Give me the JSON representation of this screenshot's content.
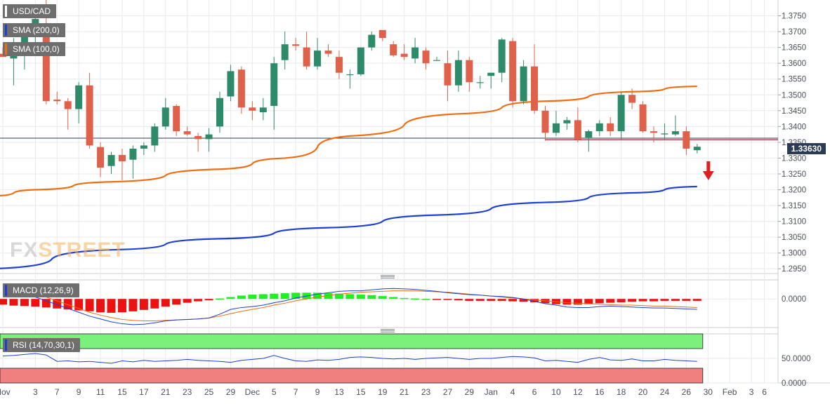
{
  "colors": {
    "bull": "#2e8b6a",
    "bear": "#e0614a",
    "sma200": "#1f3fd1",
    "sma100": "#ef6c11",
    "support": "#e0314f",
    "arrow": "#e02020",
    "macd_line": "#1f3fd1",
    "signal_line": "#ef6c11",
    "hist_pos": "#22ee22",
    "hist_neg": "#ee1111",
    "rsi_line": "#1f3fd1",
    "rsi_upper": "#7bf07b",
    "rsi_lower": "#f08080",
    "grid": "#e6e9ee",
    "price_tag_bg": "#2b3a55"
  },
  "legend": {
    "symbol": "USD/CAD",
    "sma200": "SMA (200,0)",
    "sma100": "SMA (100,0)",
    "macd": "MACD (12,26,9)",
    "rsi": "RSI (14,70,30,1)"
  },
  "price_tag": "1.33630",
  "watermark": {
    "fx": "FX",
    "street": "STREET"
  },
  "icons": {
    "pane_divider": "drag-handle-icon",
    "signal": "down-arrow-icon"
  },
  "chart_data": {
    "type": "candlestick",
    "y_ticks": [
      "1.3750",
      "1.3700",
      "1.3650",
      "1.3600",
      "1.3550",
      "1.3500",
      "1.3450",
      "1.3400",
      "1.3350",
      "1.3300",
      "1.3250",
      "1.3200",
      "1.3150",
      "1.3100",
      "1.3050",
      "1.3000",
      "1.2950"
    ],
    "ylim": [
      1.2935,
      1.38
    ],
    "x_labels": [
      "Nov",
      "3",
      "7",
      "9",
      "11",
      "15",
      "17",
      "21",
      "23",
      "25",
      "29",
      "Dec",
      "5",
      "7",
      "9",
      "13",
      "15",
      "19",
      "21",
      "23",
      "27",
      "29",
      "Jan",
      "4",
      "6",
      "10",
      "12",
      "16",
      "18",
      "20",
      "24",
      "26",
      "30",
      "Feb",
      "3",
      "6"
    ],
    "x_label_index": [
      0,
      3,
      5,
      7,
      9,
      11,
      13,
      15,
      17,
      19,
      21,
      23,
      25,
      27,
      29,
      31,
      33,
      35,
      37,
      39,
      41,
      43,
      45,
      47,
      49,
      51,
      53,
      55,
      57,
      59,
      61,
      63,
      65,
      67,
      69,
      70.2
    ],
    "candles": [
      {
        "o": 1.363,
        "h": 1.365,
        "l": 1.362,
        "c": 1.362
      },
      {
        "o": 1.3615,
        "h": 1.368,
        "l": 1.353,
        "c": 1.364
      },
      {
        "o": 1.365,
        "h": 1.372,
        "l": 1.358,
        "c": 1.371
      },
      {
        "o": 1.371,
        "h": 1.378,
        "l": 1.365,
        "c": 1.374
      },
      {
        "o": 1.372,
        "h": 1.38,
        "l": 1.347,
        "c": 1.348
      },
      {
        "o": 1.3485,
        "h": 1.351,
        "l": 1.347,
        "c": 1.348
      },
      {
        "o": 1.348,
        "h": 1.349,
        "l": 1.339,
        "c": 1.3455
      },
      {
        "o": 1.3455,
        "h": 1.354,
        "l": 1.341,
        "c": 1.353
      },
      {
        "o": 1.353,
        "h": 1.357,
        "l": 1.333,
        "c": 1.334
      },
      {
        "o": 1.3335,
        "h": 1.335,
        "l": 1.324,
        "c": 1.327
      },
      {
        "o": 1.3275,
        "h": 1.332,
        "l": 1.325,
        "c": 1.331
      },
      {
        "o": 1.331,
        "h": 1.333,
        "l": 1.323,
        "c": 1.329
      },
      {
        "o": 1.3295,
        "h": 1.334,
        "l": 1.3235,
        "c": 1.333
      },
      {
        "o": 1.333,
        "h": 1.335,
        "l": 1.331,
        "c": 1.334
      },
      {
        "o": 1.334,
        "h": 1.341,
        "l": 1.332,
        "c": 1.34
      },
      {
        "o": 1.34,
        "h": 1.349,
        "l": 1.339,
        "c": 1.346
      },
      {
        "o": 1.3465,
        "h": 1.347,
        "l": 1.337,
        "c": 1.3385
      },
      {
        "o": 1.3385,
        "h": 1.34,
        "l": 1.337,
        "c": 1.3375
      },
      {
        "o": 1.337,
        "h": 1.338,
        "l": 1.332,
        "c": 1.336
      },
      {
        "o": 1.336,
        "h": 1.3395,
        "l": 1.332,
        "c": 1.3375
      },
      {
        "o": 1.34,
        "h": 1.351,
        "l": 1.338,
        "c": 1.349
      },
      {
        "o": 1.3495,
        "h": 1.3595,
        "l": 1.348,
        "c": 1.3575
      },
      {
        "o": 1.358,
        "h": 1.359,
        "l": 1.344,
        "c": 1.346
      },
      {
        "o": 1.346,
        "h": 1.348,
        "l": 1.342,
        "c": 1.345
      },
      {
        "o": 1.3445,
        "h": 1.349,
        "l": 1.342,
        "c": 1.346
      },
      {
        "o": 1.3465,
        "h": 1.362,
        "l": 1.339,
        "c": 1.36
      },
      {
        "o": 1.361,
        "h": 1.37,
        "l": 1.358,
        "c": 1.366
      },
      {
        "o": 1.366,
        "h": 1.368,
        "l": 1.364,
        "c": 1.3655
      },
      {
        "o": 1.365,
        "h": 1.37,
        "l": 1.358,
        "c": 1.359
      },
      {
        "o": 1.359,
        "h": 1.368,
        "l": 1.358,
        "c": 1.364
      },
      {
        "o": 1.364,
        "h": 1.366,
        "l": 1.362,
        "c": 1.363
      },
      {
        "o": 1.362,
        "h": 1.364,
        "l": 1.355,
        "c": 1.357
      },
      {
        "o": 1.3565,
        "h": 1.358,
        "l": 1.352,
        "c": 1.3565
      },
      {
        "o": 1.3565,
        "h": 1.365,
        "l": 1.356,
        "c": 1.365
      },
      {
        "o": 1.365,
        "h": 1.37,
        "l": 1.364,
        "c": 1.369
      },
      {
        "o": 1.3705,
        "h": 1.3705,
        "l": 1.367,
        "c": 1.368
      },
      {
        "o": 1.366,
        "h": 1.367,
        "l": 1.362,
        "c": 1.3625
      },
      {
        "o": 1.363,
        "h": 1.366,
        "l": 1.361,
        "c": 1.362
      },
      {
        "o": 1.3615,
        "h": 1.368,
        "l": 1.36,
        "c": 1.365
      },
      {
        "o": 1.364,
        "h": 1.365,
        "l": 1.358,
        "c": 1.36
      },
      {
        "o": 1.361,
        "h": 1.362,
        "l": 1.361,
        "c": 1.361
      },
      {
        "o": 1.36,
        "h": 1.364,
        "l": 1.348,
        "c": 1.353
      },
      {
        "o": 1.353,
        "h": 1.364,
        "l": 1.351,
        "c": 1.361
      },
      {
        "o": 1.361,
        "h": 1.362,
        "l": 1.351,
        "c": 1.354
      },
      {
        "o": 1.354,
        "h": 1.356,
        "l": 1.352,
        "c": 1.354
      },
      {
        "o": 1.356,
        "h": 1.357,
        "l": 1.352,
        "c": 1.357
      },
      {
        "o": 1.357,
        "h": 1.368,
        "l": 1.354,
        "c": 1.3675
      },
      {
        "o": 1.367,
        "h": 1.368,
        "l": 1.346,
        "c": 1.348
      },
      {
        "o": 1.348,
        "h": 1.361,
        "l": 1.347,
        "c": 1.359
      },
      {
        "o": 1.359,
        "h": 1.366,
        "l": 1.344,
        "c": 1.345
      },
      {
        "o": 1.345,
        "h": 1.3465,
        "l": 1.3355,
        "c": 1.338
      },
      {
        "o": 1.338,
        "h": 1.345,
        "l": 1.337,
        "c": 1.341
      },
      {
        "o": 1.341,
        "h": 1.343,
        "l": 1.339,
        "c": 1.342
      },
      {
        "o": 1.342,
        "h": 1.346,
        "l": 1.335,
        "c": 1.336
      },
      {
        "o": 1.3365,
        "h": 1.339,
        "l": 1.332,
        "c": 1.3385
      },
      {
        "o": 1.3385,
        "h": 1.342,
        "l": 1.337,
        "c": 1.341
      },
      {
        "o": 1.341,
        "h": 1.343,
        "l": 1.337,
        "c": 1.3385
      },
      {
        "o": 1.3385,
        "h": 1.351,
        "l": 1.336,
        "c": 1.35
      },
      {
        "o": 1.35,
        "h": 1.352,
        "l": 1.3455,
        "c": 1.3475
      },
      {
        "o": 1.347,
        "h": 1.348,
        "l": 1.338,
        "c": 1.3385
      },
      {
        "o": 1.3385,
        "h": 1.34,
        "l": 1.335,
        "c": 1.338
      },
      {
        "o": 1.3375,
        "h": 1.341,
        "l": 1.336,
        "c": 1.3378
      },
      {
        "o": 1.3375,
        "h": 1.3435,
        "l": 1.337,
        "c": 1.3385
      },
      {
        "o": 1.3385,
        "h": 1.34,
        "l": 1.331,
        "c": 1.333
      },
      {
        "o": 1.3325,
        "h": 1.3345,
        "l": 1.3315,
        "c": 1.3336
      }
    ],
    "sma200_points": [
      [
        -1,
        1.295
      ],
      [
        10,
        1.301
      ],
      [
        20,
        1.3045
      ],
      [
        30,
        1.308
      ],
      [
        40,
        1.312
      ],
      [
        50,
        1.316
      ],
      [
        58,
        1.319
      ],
      [
        64,
        1.321
      ]
    ],
    "sma100_points": [
      [
        -1,
        1.318
      ],
      [
        3,
        1.32
      ],
      [
        10,
        1.3225
      ],
      [
        20,
        1.3265
      ],
      [
        26,
        1.33
      ],
      [
        32,
        1.337
      ],
      [
        42,
        1.344
      ],
      [
        50,
        1.348
      ],
      [
        58,
        1.351
      ],
      [
        64,
        1.3527
      ]
    ],
    "support_level": 1.3358,
    "support_from_index": 50,
    "current_price": 1.3363,
    "macd": {
      "ylim": [
        -0.006,
        0.004
      ],
      "tick": "0.0000",
      "histogram": [
        -0.0012,
        -0.0014,
        -0.0015,
        -0.0016,
        -0.0018,
        -0.002,
        -0.0022,
        -0.0024,
        -0.0026,
        -0.0028,
        -0.0029,
        -0.0028,
        -0.0026,
        -0.0023,
        -0.002,
        -0.0016,
        -0.0012,
        -0.0008,
        -0.0005,
        -0.0003,
        0.0001,
        0.0004,
        0.0007,
        0.0009,
        0.001,
        0.0011,
        0.0012,
        0.0013,
        0.0013,
        0.0013,
        0.0012,
        0.0011,
        0.001,
        0.0009,
        0.0008,
        0.0006,
        0.0004,
        0.0002,
        0.0001,
        0.0,
        -0.0001,
        -0.0002,
        -0.0003,
        -0.0004,
        -0.0004,
        -0.0004,
        -0.0004,
        -0.0005,
        -0.0006,
        -0.0007,
        -0.0009,
        -0.0011,
        -0.0012,
        -0.0012,
        -0.0011,
        -0.0009,
        -0.0008,
        -0.0007,
        -0.0006,
        -0.0005,
        -0.0005,
        -0.0004,
        -0.0004,
        -0.0004,
        -0.0004
      ],
      "macd_line": [
        0.0022,
        0.0016,
        0.001,
        0.0004,
        -0.0004,
        -0.0012,
        -0.002,
        -0.0028,
        -0.0036,
        -0.0042,
        -0.0048,
        -0.0052,
        -0.0054,
        -0.0053,
        -0.005,
        -0.0046,
        -0.0044,
        -0.0043,
        -0.0042,
        -0.004,
        -0.0032,
        -0.0022,
        -0.0018,
        -0.0016,
        -0.0013,
        -0.0008,
        -0.0004,
        0.0002,
        0.0006,
        0.001,
        0.0013,
        0.0016,
        0.0017,
        0.0017,
        0.0019,
        0.0021,
        0.0022,
        0.0021,
        0.002,
        0.0018,
        0.0016,
        0.0013,
        0.0011,
        0.0009,
        0.0008,
        0.0006,
        0.0005,
        0.0003,
        0.0,
        -0.0005,
        -0.001,
        -0.0013,
        -0.0017,
        -0.0018,
        -0.0018,
        -0.0016,
        -0.0015,
        -0.0016,
        -0.0017,
        -0.0018,
        -0.0019,
        -0.0019,
        -0.002,
        -0.0021,
        -0.0022
      ],
      "signal_line": [
        0.0026,
        0.0022,
        0.0017,
        0.0011,
        0.0004,
        -0.0004,
        -0.0012,
        -0.002,
        -0.0028,
        -0.0034,
        -0.0039,
        -0.0043,
        -0.0045,
        -0.0046,
        -0.0046,
        -0.0045,
        -0.0044,
        -0.0043,
        -0.0042,
        -0.004,
        -0.0036,
        -0.0031,
        -0.0026,
        -0.0022,
        -0.0018,
        -0.0013,
        -0.0009,
        -0.0004,
        0.0,
        0.0004,
        0.0007,
        0.001,
        0.0012,
        0.0014,
        0.0015,
        0.0016,
        0.0017,
        0.0017,
        0.0017,
        0.0016,
        0.0015,
        0.0014,
        0.0012,
        0.001,
        0.0008,
        0.0006,
        0.0004,
        0.0002,
        0.0,
        -0.0002,
        -0.0004,
        -0.0006,
        -0.0008,
        -0.0009,
        -0.001,
        -0.0011,
        -0.0012,
        -0.0013,
        -0.0013,
        -0.0014,
        -0.0015,
        -0.0015,
        -0.0016,
        -0.0017,
        -0.0018
      ]
    },
    "rsi": {
      "ylim": [
        0,
        100
      ],
      "ticks": [
        "50.0000",
        "0.0000"
      ],
      "upper_band": [
        70,
        100
      ],
      "lower_band": [
        0,
        30
      ],
      "values": [
        55,
        56,
        58,
        60,
        57,
        44,
        45,
        43,
        44,
        42,
        40,
        45,
        43,
        46,
        44,
        45,
        46,
        48,
        46,
        45,
        44,
        42,
        46,
        48,
        50,
        56,
        50,
        45,
        44,
        47,
        46,
        48,
        52,
        53,
        52,
        50,
        49,
        50,
        48,
        50,
        51,
        52,
        50,
        48,
        50,
        50,
        52,
        54,
        53,
        51,
        45,
        46,
        44,
        42,
        48,
        52,
        47,
        46,
        49,
        45,
        45,
        48,
        46,
        45,
        44
      ]
    }
  }
}
